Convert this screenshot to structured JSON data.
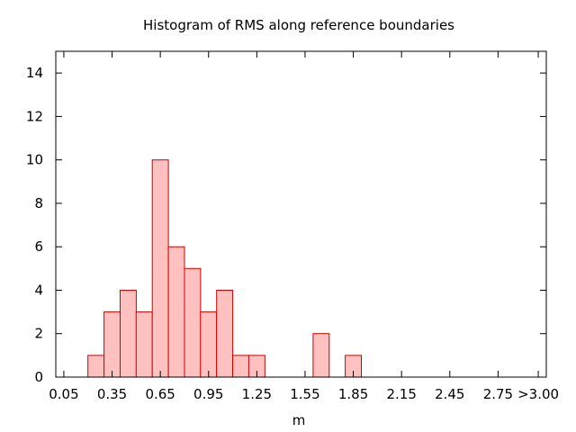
{
  "chart_data": {
    "type": "bar",
    "title": "Histogram of RMS along reference boundaries",
    "xlabel": "m",
    "ylabel": "",
    "xlim": [
      0.0,
      3.05
    ],
    "ylim": [
      0,
      15
    ],
    "x_ticks": [
      "0.05",
      "0.35",
      "0.65",
      "0.95",
      "1.25",
      "1.55",
      "1.85",
      "2.15",
      "2.45",
      "2.75",
      ">3.00"
    ],
    "x_tick_values": [
      0.05,
      0.35,
      0.65,
      0.95,
      1.25,
      1.55,
      1.85,
      2.15,
      2.45,
      2.75,
      3.0
    ],
    "y_ticks": [
      0,
      2,
      4,
      6,
      8,
      10,
      12,
      14
    ],
    "bin_width": 0.1,
    "bins": [
      {
        "center": 0.25,
        "count": 1
      },
      {
        "center": 0.35,
        "count": 3
      },
      {
        "center": 0.45,
        "count": 4
      },
      {
        "center": 0.55,
        "count": 3
      },
      {
        "center": 0.65,
        "count": 10
      },
      {
        "center": 0.75,
        "count": 6
      },
      {
        "center": 0.85,
        "count": 5
      },
      {
        "center": 0.95,
        "count": 3
      },
      {
        "center": 1.05,
        "count": 4
      },
      {
        "center": 1.15,
        "count": 1
      },
      {
        "center": 1.25,
        "count": 1
      },
      {
        "center": 1.65,
        "count": 2
      },
      {
        "center": 1.85,
        "count": 1
      }
    ],
    "grid": false,
    "legend": "none",
    "colors": {
      "fill": "#ffc0c0",
      "stroke": "#cc0000",
      "axis": "#000000"
    }
  }
}
